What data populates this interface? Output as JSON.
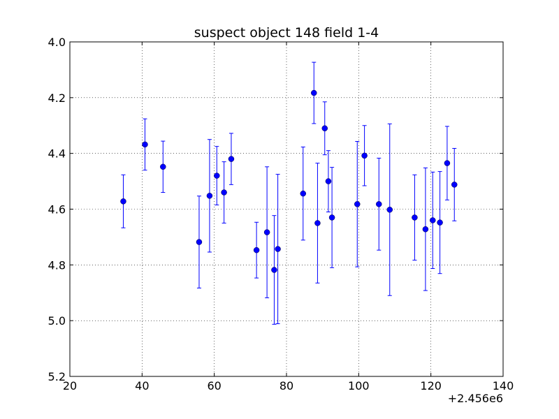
{
  "chart_data": {
    "type": "scatter",
    "title": "suspect object 148 field 1-4",
    "xlabel": "",
    "ylabel": "",
    "x_offset_label": "+2.456e6",
    "xlim": [
      20,
      140
    ],
    "ylim": [
      5.2,
      4.0
    ],
    "y_inverted": true,
    "grid": true,
    "x_ticks": [
      "20",
      "40",
      "60",
      "80",
      "100",
      "120",
      "140"
    ],
    "y_ticks": [
      "4.0",
      "4.2",
      "4.4",
      "4.6",
      "4.8",
      "5.0",
      "5.2"
    ],
    "marker_color": "#0000ff",
    "points": [
      {
        "x": 2456034.8,
        "y": 4.572,
        "err": 0.095
      },
      {
        "x": 2456040.8,
        "y": 4.368,
        "err": 0.092
      },
      {
        "x": 2456045.8,
        "y": 4.448,
        "err": 0.092
      },
      {
        "x": 2456055.8,
        "y": 4.718,
        "err": 0.165
      },
      {
        "x": 2456058.7,
        "y": 4.552,
        "err": 0.202
      },
      {
        "x": 2456060.7,
        "y": 4.48,
        "err": 0.105
      },
      {
        "x": 2456062.7,
        "y": 4.54,
        "err": 0.11
      },
      {
        "x": 2456064.7,
        "y": 4.42,
        "err": 0.092
      },
      {
        "x": 2456071.7,
        "y": 4.747,
        "err": 0.1
      },
      {
        "x": 2456074.6,
        "y": 4.683,
        "err": 0.235
      },
      {
        "x": 2456076.6,
        "y": 4.818,
        "err": 0.195
      },
      {
        "x": 2456077.6,
        "y": 4.743,
        "err": 0.268
      },
      {
        "x": 2456084.6,
        "y": 4.544,
        "err": 0.167
      },
      {
        "x": 2456087.6,
        "y": 4.183,
        "err": 0.11
      },
      {
        "x": 2456088.6,
        "y": 4.65,
        "err": 0.215
      },
      {
        "x": 2456090.6,
        "y": 4.31,
        "err": 0.095
      },
      {
        "x": 2456091.6,
        "y": 4.5,
        "err": 0.11
      },
      {
        "x": 2456092.6,
        "y": 4.63,
        "err": 0.18
      },
      {
        "x": 2456099.6,
        "y": 4.582,
        "err": 0.225
      },
      {
        "x": 2456101.6,
        "y": 4.408,
        "err": 0.108
      },
      {
        "x": 2456105.6,
        "y": 4.582,
        "err": 0.165
      },
      {
        "x": 2456108.6,
        "y": 4.602,
        "err": 0.308
      },
      {
        "x": 2456115.5,
        "y": 4.63,
        "err": 0.153
      },
      {
        "x": 2456118.5,
        "y": 4.672,
        "err": 0.22
      },
      {
        "x": 2456120.5,
        "y": 4.64,
        "err": 0.173
      },
      {
        "x": 2456122.5,
        "y": 4.648,
        "err": 0.183
      },
      {
        "x": 2456124.5,
        "y": 4.435,
        "err": 0.132
      },
      {
        "x": 2456126.5,
        "y": 4.512,
        "err": 0.13
      }
    ]
  }
}
